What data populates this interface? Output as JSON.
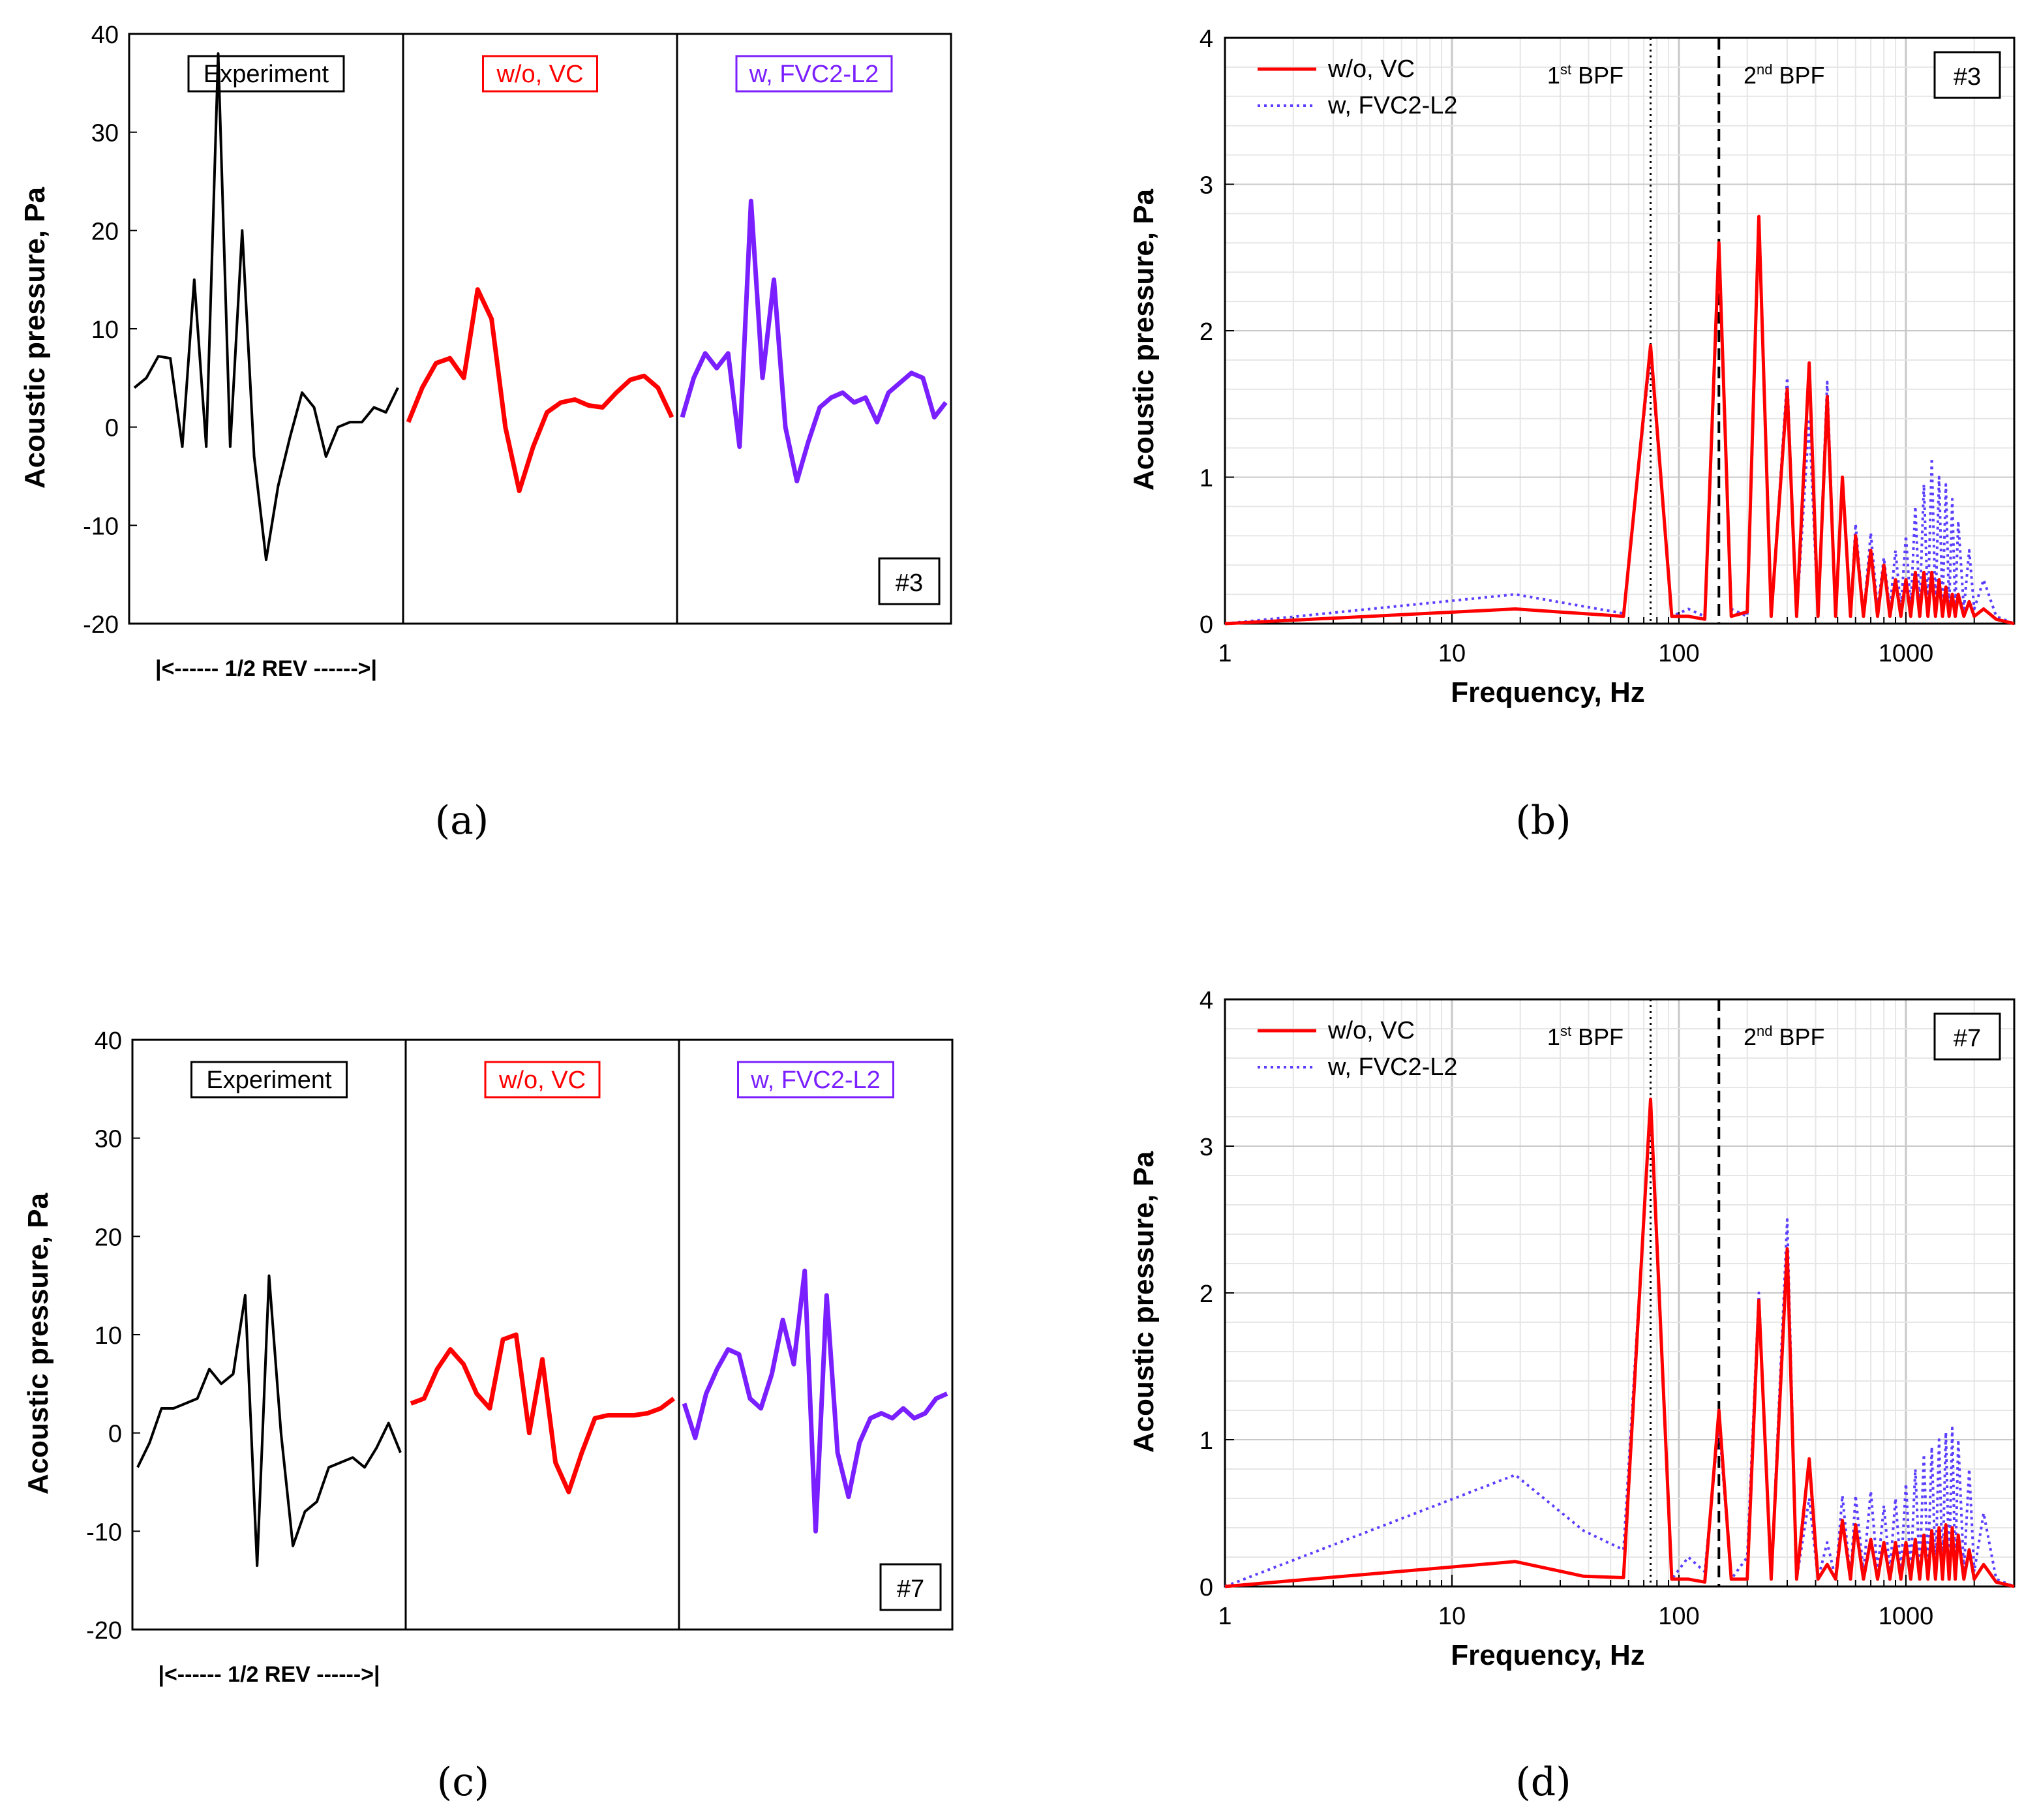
{
  "chart_data": [
    {
      "type": "line",
      "panel_label": "(a)",
      "ylabel": "Acoustic pressure, Pa",
      "ylim": [
        -20,
        40
      ],
      "yticks": [
        "40",
        "30",
        "20",
        "10",
        "0",
        "-10",
        "-20"
      ],
      "xlabel": "|<------ 1/2 REV ------>|",
      "case_tag": "#3",
      "segments": [
        {
          "name": "Experiment",
          "color": "#000000",
          "values": [
            4,
            5,
            7.2,
            7,
            -2,
            15,
            -2,
            38,
            -2,
            20,
            -3,
            -13.5,
            -6,
            -1,
            3.5,
            2,
            -3,
            0,
            0.5,
            0.5,
            2,
            1.5,
            4
          ]
        },
        {
          "name": "w/o, VC",
          "color": "#ff0000",
          "values": [
            0.5,
            4,
            6.5,
            7,
            5,
            14,
            11,
            0,
            -6.5,
            -2,
            1.5,
            2.5,
            2.8,
            2.2,
            2,
            3.5,
            4.8,
            5.2,
            4,
            1
          ]
        },
        {
          "name": "w, FVC2-L2",
          "color": "#7a1fff",
          "values": [
            1,
            5,
            7.5,
            6,
            7.5,
            -2,
            23,
            5,
            15,
            0,
            -5.5,
            -1.5,
            2,
            3,
            3.5,
            2.5,
            3,
            0.5,
            3.5,
            4.5,
            5.5,
            5,
            1,
            2.5
          ]
        }
      ]
    },
    {
      "type": "line",
      "panel_label": "(b)",
      "xlabel": "Frequency, Hz",
      "ylabel": "Acoustic pressure, Pa",
      "xscale": "log",
      "xlim": [
        1,
        3000
      ],
      "ylim": [
        0,
        4
      ],
      "xticks": [
        "1",
        "10",
        "100",
        "1000"
      ],
      "yticks": [
        "0",
        "1",
        "2",
        "3",
        "4"
      ],
      "case_tag": "#3",
      "annotations": [
        "1st BPF",
        "2nd BPF"
      ],
      "series": [
        {
          "name": "w/o, VC",
          "style": "solid",
          "color": "#ff0000",
          "x": [
            1,
            19,
            57,
            75,
            93,
            110,
            130,
            150,
            170,
            200,
            225,
            255,
            300,
            330,
            375,
            410,
            450,
            490,
            525,
            570,
            600,
            650,
            700,
            750,
            800,
            850,
            900,
            950,
            1000,
            1050,
            1100,
            1150,
            1200,
            1250,
            1300,
            1350,
            1400,
            1450,
            1500,
            1550,
            1600,
            1650,
            1700,
            1800,
            1900,
            2000,
            2200,
            2500,
            3000
          ],
          "y": [
            0,
            0.1,
            0.05,
            1.9,
            0.05,
            0.05,
            0.03,
            2.6,
            0.05,
            0.08,
            2.78,
            0.05,
            1.6,
            0.05,
            1.78,
            0.05,
            1.55,
            0.05,
            1.0,
            0.05,
            0.6,
            0.05,
            0.5,
            0.05,
            0.4,
            0.05,
            0.3,
            0.05,
            0.3,
            0.05,
            0.35,
            0.05,
            0.35,
            0.05,
            0.35,
            0.05,
            0.3,
            0.05,
            0.25,
            0.05,
            0.2,
            0.05,
            0.2,
            0.05,
            0.15,
            0.05,
            0.1,
            0.03,
            0
          ]
        },
        {
          "name": "w, FVC2-L2",
          "style": "dotted",
          "color": "#5b3fff",
          "x": [
            1,
            19,
            57,
            75,
            93,
            110,
            130,
            150,
            170,
            200,
            225,
            255,
            300,
            330,
            375,
            410,
            450,
            490,
            525,
            570,
            600,
            650,
            700,
            750,
            800,
            850,
            900,
            950,
            1000,
            1050,
            1100,
            1150,
            1200,
            1250,
            1300,
            1350,
            1400,
            1450,
            1500,
            1550,
            1600,
            1650,
            1700,
            1800,
            1900,
            2000,
            2200,
            2500,
            3000
          ],
          "y": [
            0,
            0.2,
            0.07,
            1.85,
            0.05,
            0.1,
            0.05,
            2.55,
            0.1,
            0.05,
            2.75,
            0.05,
            1.68,
            0.05,
            1.4,
            0.05,
            1.65,
            0.05,
            1.0,
            0.05,
            0.68,
            0.05,
            0.62,
            0.1,
            0.45,
            0.1,
            0.5,
            0.1,
            0.6,
            0.1,
            0.8,
            0.1,
            0.95,
            0.1,
            1.13,
            0.1,
            1.0,
            0.1,
            0.95,
            0.1,
            0.85,
            0.1,
            0.7,
            0.1,
            0.5,
            0.1,
            0.3,
            0.05,
            0
          ]
        }
      ]
    },
    {
      "type": "line",
      "panel_label": "(c)",
      "ylabel": "Acoustic pressure, Pa",
      "ylim": [
        -20,
        40
      ],
      "yticks": [
        "40",
        "30",
        "20",
        "10",
        "0",
        "-10",
        "-20"
      ],
      "xlabel": "|<------ 1/2 REV ------>|",
      "case_tag": "#7",
      "segments": [
        {
          "name": "Experiment",
          "color": "#000000",
          "values": [
            -3.5,
            -1,
            2.5,
            2.5,
            3,
            3.5,
            6.5,
            5,
            6,
            14,
            -13.5,
            16,
            0,
            -11.5,
            -8,
            -7,
            -3.5,
            -3,
            -2.5,
            -3.5,
            -1.5,
            1,
            -2
          ]
        },
        {
          "name": "w/o, VC",
          "color": "#ff0000",
          "values": [
            3,
            3.5,
            6.5,
            8.5,
            7,
            4,
            2.5,
            9.5,
            10,
            0,
            7.5,
            -3,
            -6,
            -2,
            1.5,
            1.8,
            1.8,
            1.8,
            2,
            2.5,
            3.5
          ]
        },
        {
          "name": "w, FVC2-L2",
          "color": "#7a1fff",
          "values": [
            3,
            -0.5,
            4,
            6.5,
            8.5,
            8,
            3.5,
            2.5,
            6,
            11.5,
            7,
            16.5,
            -10,
            14,
            -2,
            -6.5,
            -1,
            1.5,
            2,
            1.5,
            2.5,
            1.5,
            2,
            3.5,
            4
          ]
        }
      ]
    },
    {
      "type": "line",
      "panel_label": "(d)",
      "xlabel": "Frequency, Hz",
      "ylabel": "Acoustic pressure, Pa",
      "xscale": "log",
      "xlim": [
        1,
        3000
      ],
      "ylim": [
        0,
        4
      ],
      "xticks": [
        "1",
        "10",
        "100",
        "1000"
      ],
      "yticks": [
        "0",
        "1",
        "2",
        "3",
        "4"
      ],
      "case_tag": "#7",
      "annotations": [
        "1st BPF",
        "2nd BPF"
      ],
      "series": [
        {
          "name": "w/o, VC",
          "style": "solid",
          "color": "#ff0000",
          "x": [
            1,
            19,
            38,
            57,
            75,
            93,
            110,
            130,
            150,
            170,
            200,
            225,
            255,
            300,
            330,
            375,
            410,
            450,
            490,
            525,
            570,
            600,
            650,
            700,
            750,
            800,
            850,
            900,
            950,
            1000,
            1050,
            1100,
            1150,
            1200,
            1250,
            1300,
            1350,
            1400,
            1450,
            1500,
            1550,
            1600,
            1650,
            1700,
            1800,
            1900,
            2000,
            2200,
            2500,
            3000
          ],
          "y": [
            0,
            0.17,
            0.07,
            0.06,
            3.32,
            0.05,
            0.05,
            0.03,
            1.2,
            0.05,
            0.05,
            1.95,
            0.05,
            2.3,
            0.05,
            0.87,
            0.05,
            0.15,
            0.05,
            0.45,
            0.05,
            0.42,
            0.05,
            0.32,
            0.05,
            0.3,
            0.05,
            0.3,
            0.05,
            0.3,
            0.05,
            0.32,
            0.05,
            0.35,
            0.05,
            0.38,
            0.05,
            0.4,
            0.05,
            0.42,
            0.05,
            0.4,
            0.05,
            0.35,
            0.05,
            0.25,
            0.05,
            0.15,
            0.03,
            0
          ]
        },
        {
          "name": "w, FVC2-L2",
          "style": "dotted",
          "color": "#5b3fff",
          "x": [
            1,
            19,
            38,
            57,
            75,
            93,
            110,
            130,
            150,
            170,
            200,
            225,
            255,
            300,
            330,
            375,
            410,
            450,
            490,
            525,
            570,
            600,
            650,
            700,
            750,
            800,
            850,
            900,
            950,
            1000,
            1050,
            1100,
            1150,
            1200,
            1250,
            1300,
            1350,
            1400,
            1450,
            1500,
            1550,
            1600,
            1650,
            1700,
            1800,
            1900,
            2000,
            2200,
            2500,
            3000
          ],
          "y": [
            0,
            0.76,
            0.38,
            0.25,
            3.25,
            0.05,
            0.2,
            0.1,
            1.12,
            0.05,
            0.2,
            2.0,
            0.05,
            2.5,
            0.05,
            0.6,
            0.05,
            0.3,
            0.05,
            0.62,
            0.05,
            0.62,
            0.1,
            0.65,
            0.1,
            0.55,
            0.1,
            0.6,
            0.1,
            0.7,
            0.1,
            0.8,
            0.1,
            0.9,
            0.1,
            0.95,
            0.1,
            1.0,
            0.1,
            1.05,
            0.1,
            1.08,
            0.1,
            1.0,
            0.1,
            0.8,
            0.1,
            0.5,
            0.05,
            0
          ]
        }
      ]
    }
  ]
}
